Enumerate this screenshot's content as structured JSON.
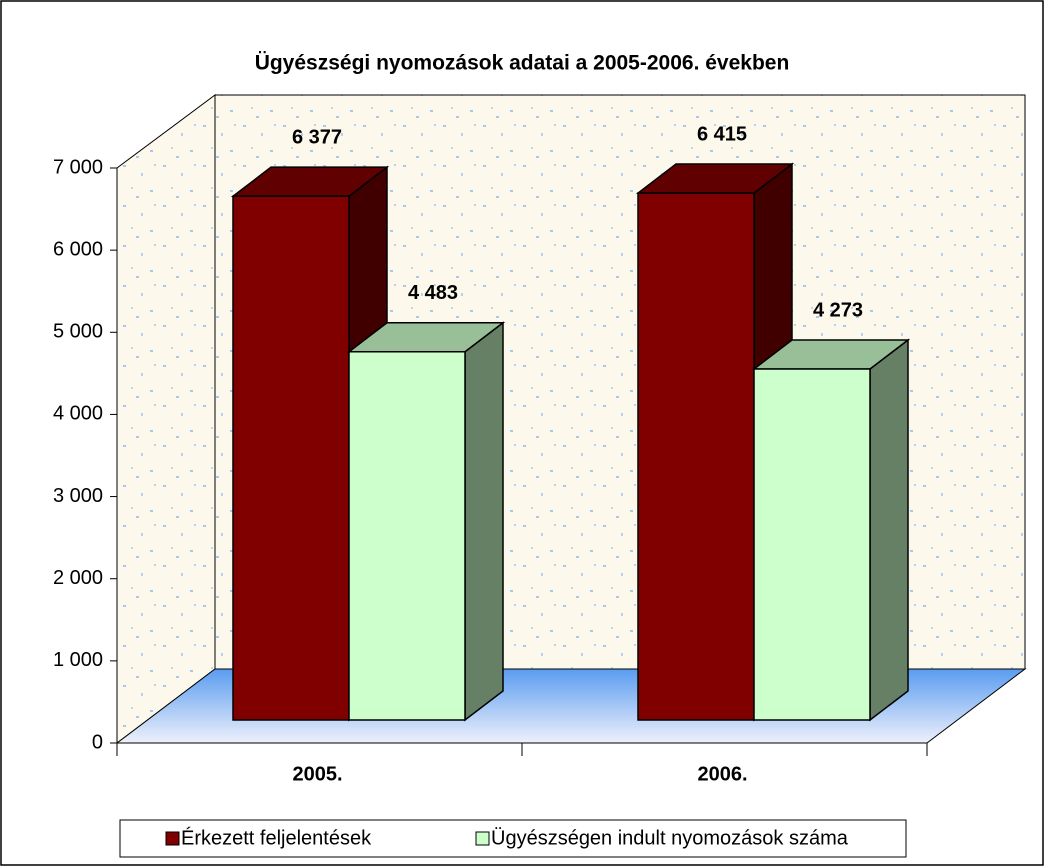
{
  "chart_data": {
    "type": "bar3d",
    "title": "Ügyészségi nyomozások adatai a 2005-2006. években",
    "categories": [
      "2005.",
      "2006."
    ],
    "series": [
      {
        "name": "Érkezett feljelentések",
        "color": "#800000",
        "values": [
          6377,
          6415
        ],
        "value_labels": [
          "6 377",
          "6 415"
        ]
      },
      {
        "name": "Ügyészségen indult nyomozások száma",
        "color": "#ccffcc",
        "values": [
          4483,
          4273
        ],
        "value_labels": [
          "4 483",
          "4 273"
        ]
      }
    ],
    "ylim": [
      0,
      7000
    ],
    "yticks": [
      {
        "value": 0,
        "label": "0"
      },
      {
        "value": 1000,
        "label": "1 000"
      },
      {
        "value": 2000,
        "label": "2 000"
      },
      {
        "value": 3000,
        "label": "3 000"
      },
      {
        "value": 4000,
        "label": "4 000"
      },
      {
        "value": 5000,
        "label": "5 000"
      },
      {
        "value": 6000,
        "label": "6 000"
      },
      {
        "value": 7000,
        "label": "7 000"
      }
    ],
    "grid": false,
    "legend": "bottom"
  }
}
